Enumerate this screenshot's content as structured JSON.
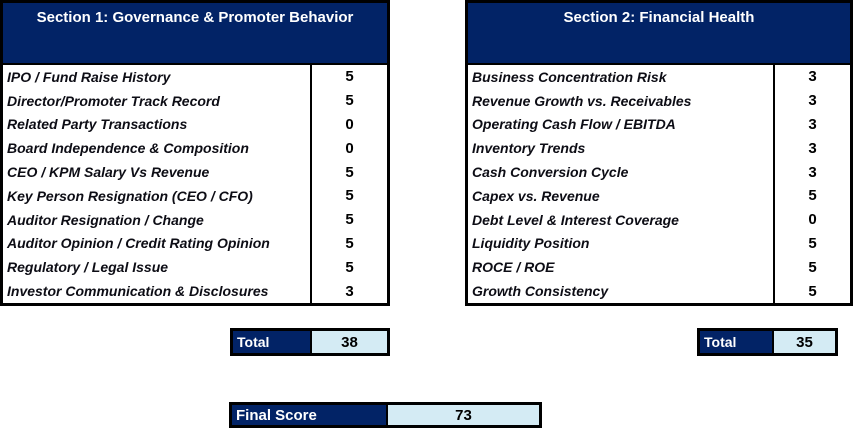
{
  "colors": {
    "navy": "#022366",
    "light_blue": "#D4EBF4",
    "border": "#000000",
    "label_text": "#0d0d15"
  },
  "section1": {
    "title": "Section 1: Governance & Promoter Behavior",
    "rows": [
      {
        "label": "IPO / Fund Raise History",
        "score": "5"
      },
      {
        "label": "Director/Promoter Track Record",
        "score": "5"
      },
      {
        "label": "Related Party Transactions",
        "score": "0"
      },
      {
        "label": "Board Independence & Composition",
        "score": "0"
      },
      {
        "label": "CEO / KPM Salary  Vs Revenue",
        "score": "5"
      },
      {
        "label": "Key Person Resignation (CEO / CFO)",
        "score": "5"
      },
      {
        "label": "Auditor Resignation / Change",
        "score": "5"
      },
      {
        "label": "Auditor Opinion / Credit Rating Opinion",
        "score": "5"
      },
      {
        "label": "Regulatory / Legal Issue",
        "score": "5"
      },
      {
        "label": "Investor Communication & Disclosures",
        "score": "3"
      }
    ],
    "total": {
      "label": "Total",
      "value": "38"
    }
  },
  "section2": {
    "title": "Section 2: Financial Health",
    "rows": [
      {
        "label": "Business Concentration Risk",
        "score": "3"
      },
      {
        "label": "Revenue Growth vs. Receivables",
        "score": "3"
      },
      {
        "label": "Operating Cash Flow / EBITDA",
        "score": "3"
      },
      {
        "label": "Inventory Trends",
        "score": "3"
      },
      {
        "label": "Cash Conversion Cycle",
        "score": "3"
      },
      {
        "label": "Capex vs. Revenue",
        "score": "5"
      },
      {
        "label": "Debt Level & Interest Coverage",
        "score": "0"
      },
      {
        "label": "Liquidity Position",
        "score": "5"
      },
      {
        "label": "ROCE / ROE",
        "score": "5"
      },
      {
        "label": "Growth Consistency",
        "score": "5"
      }
    ],
    "total": {
      "label": "Total",
      "value": "35"
    }
  },
  "final": {
    "label": "Final Score",
    "value": "73"
  }
}
